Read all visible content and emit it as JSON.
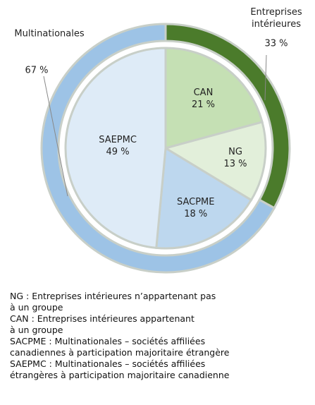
{
  "chart_data": {
    "type": "nested-pie",
    "outer": {
      "categories": [
        "Entreprises\nintérieures",
        "Multinationales"
      ],
      "values": [
        33,
        67
      ],
      "value_labels": [
        "33 %",
        "67 %"
      ],
      "colors": [
        "#4b7b2b",
        "#9dc3e6"
      ]
    },
    "inner": {
      "categories": [
        "CAN",
        "NG",
        "SACPME",
        "SAEPMC"
      ],
      "values": [
        21,
        13,
        18,
        49
      ],
      "value_labels": [
        "21 %",
        "13 %",
        "18 %",
        "49 %"
      ],
      "colors": [
        "#c5e0b4",
        "#e2efda",
        "#bdd7ee",
        "#deebf7"
      ]
    },
    "notes": [
      "NG : Entreprises intérieures n’appartenant pas\nà un groupe",
      "CAN : Entreprises intérieures appartenant\nà un groupe",
      "SACPME : Multinationales – sociétés affiliées\ncanadiennes à participation majoritaire étrangère",
      "SAEPMC : Multinationales – sociétés affiliées\nétrangères à participation majoritaire canadienne"
    ]
  }
}
